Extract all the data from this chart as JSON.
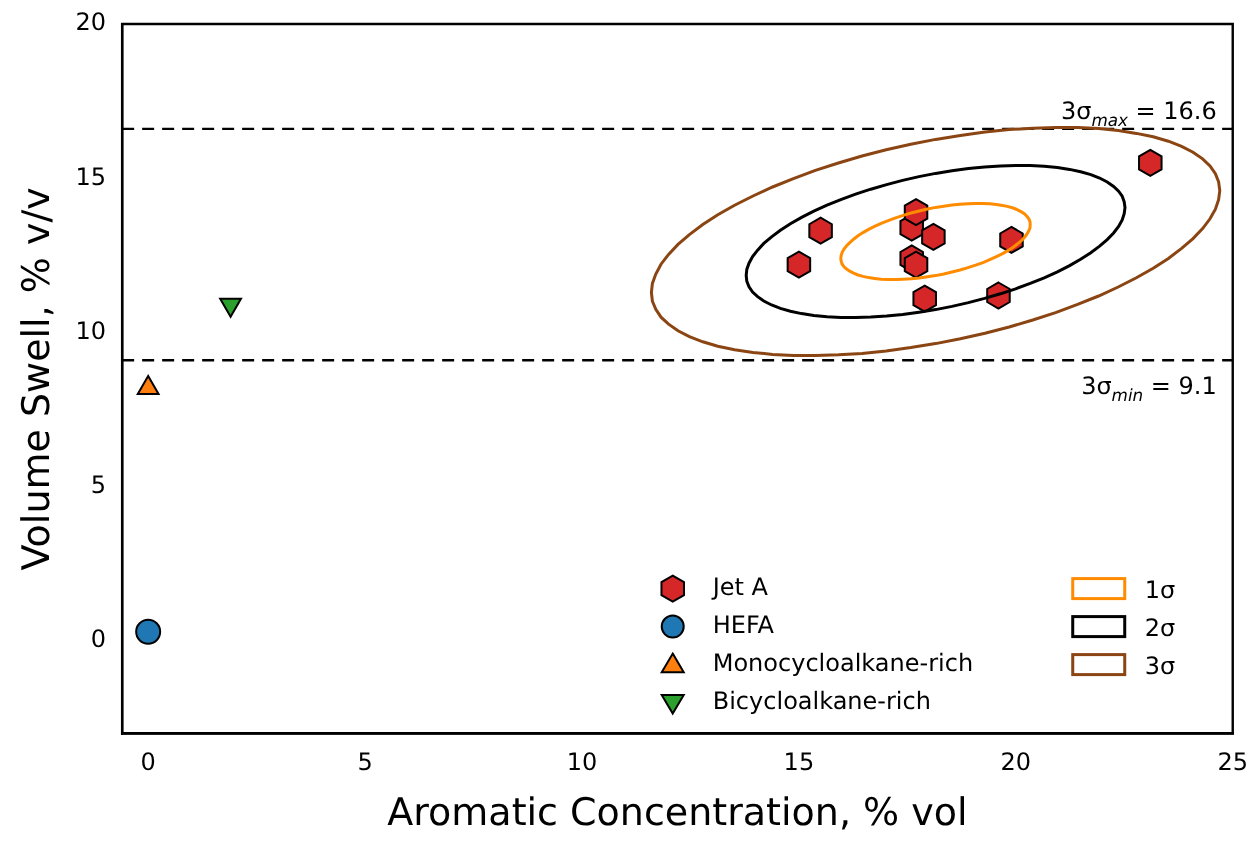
{
  "chart_data": {
    "type": "scatter",
    "xlabel": "Aromatic Concentration, % vol",
    "ylabel": "Volume Swell, % v/v",
    "xlim": [
      -0.6,
      25
    ],
    "xticks": [
      0,
      5,
      10,
      15,
      20,
      25
    ],
    "ylim": [
      -3,
      20
    ],
    "yticks": [
      0,
      5,
      10,
      15,
      20
    ],
    "grid": false,
    "legend": "bottom right",
    "series": [
      {
        "name": "Jet A",
        "color": "#d62728",
        "x": [
          15.0,
          15.5,
          17.6,
          17.7,
          17.6,
          17.7,
          17.9,
          18.1,
          19.6,
          19.9,
          23.1
        ],
        "values": [
          12.2,
          13.3,
          13.4,
          13.9,
          12.4,
          12.2,
          11.1,
          13.1,
          11.2,
          13.0,
          15.5
        ]
      },
      {
        "name": "HEFA",
        "color": "#1f77b4",
        "marker": "circle",
        "x": [
          0
        ],
        "values": [
          0.3
        ]
      },
      {
        "name": "Monocycloalkane-rich",
        "color": "#ff7f0e",
        "marker": "triangle",
        "x": [
          0
        ],
        "values": [
          8.2
        ]
      },
      {
        "name": "Bicycloalkane-rich",
        "color": "#2ca02c",
        "marker": "triangle_down",
        "x": [
          1.9
        ],
        "values": [
          10.9
        ]
      }
    ],
    "annotations": [
      "1σ",
      "2σ",
      "3σ"
    ],
    "ref_lines": [
      {
        "axis": "y",
        "value": 16.6,
        "label": "3σ$_{max}$ = 16.6",
        "color": "#000000",
        "line_style": "dashed"
      },
      {
        "axis": "y",
        "value": 9.1,
        "label": "3σ$_{min}$ = 9.1",
        "color": "#000000",
        "line_style": "dashed"
      }
    ]
  }
}
